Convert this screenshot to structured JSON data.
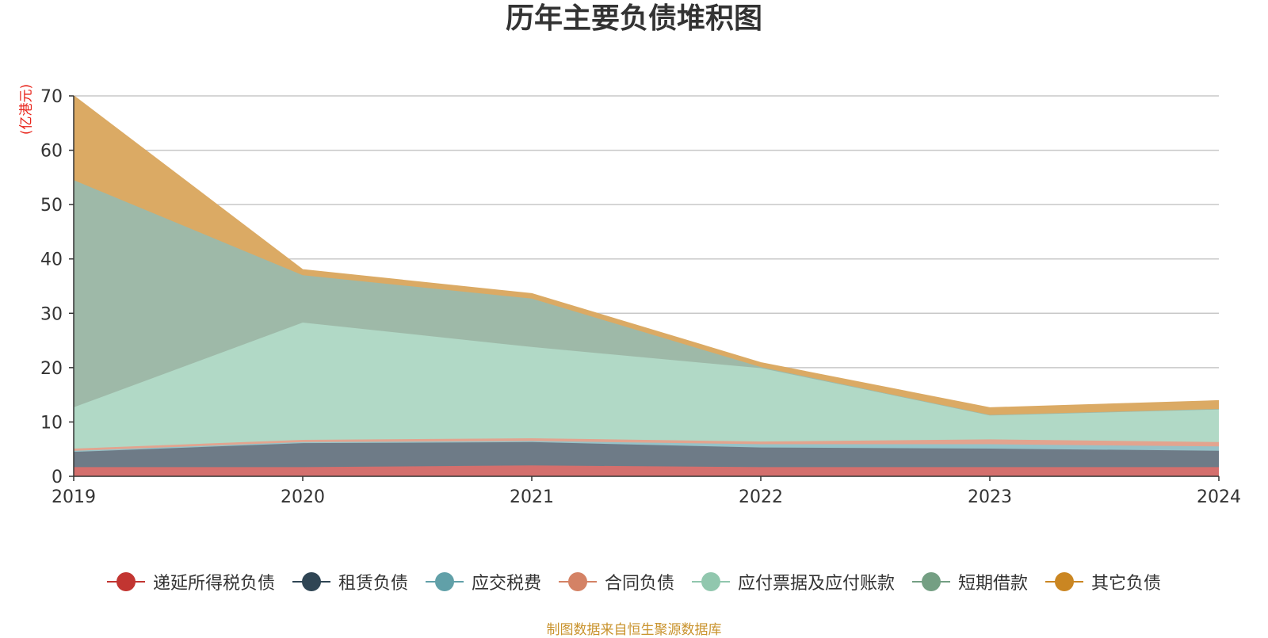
{
  "chart_data": {
    "type": "area",
    "title": "历年主要负债堆积图",
    "unit_label": "(亿港元)",
    "footnote": "制图数据来自恒生聚源数据库",
    "x": [
      "2019",
      "2020",
      "2021",
      "2022",
      "2023",
      "2024"
    ],
    "ylim": [
      0,
      70
    ],
    "yticks": [
      0,
      10,
      20,
      30,
      40,
      50,
      60,
      70
    ],
    "grid": true,
    "stacked": true,
    "legend_position": "bottom",
    "series": [
      {
        "name": "递延所得税负债",
        "color": "#c23531",
        "fill": "#d46f6d",
        "values": [
          1.7,
          1.7,
          2.0,
          1.7,
          1.7,
          1.7
        ]
      },
      {
        "name": "租赁负债",
        "color": "#2f4554",
        "fill": "#6e7b87",
        "values": [
          2.8,
          4.4,
          4.3,
          3.6,
          3.4,
          3.0
        ]
      },
      {
        "name": "应交税费",
        "color": "#61a0a8",
        "fill": "#96c2c8",
        "values": [
          0.2,
          0.2,
          0.2,
          0.6,
          0.8,
          0.8
        ]
      },
      {
        "name": "合同负债",
        "color": "#d48265",
        "fill": "#e2a48f",
        "values": [
          0.4,
          0.4,
          0.5,
          0.5,
          0.9,
          0.8
        ]
      },
      {
        "name": "应付票据及应付账款",
        "color": "#91c7ae",
        "fill": "#b1d9c6",
        "values": [
          7.6,
          21.6,
          16.8,
          13.5,
          4.5,
          6.1
        ]
      },
      {
        "name": "短期借款",
        "color": "#749f83",
        "fill": "#9eb9a8",
        "values": [
          41.8,
          8.7,
          8.9,
          0.2,
          0,
          0
        ]
      },
      {
        "name": "其它负债",
        "color": "#ca8622",
        "fill": "#dbaa64",
        "values": [
          15.5,
          1.0,
          0.9,
          0.8,
          1.3,
          1.5
        ]
      }
    ]
  }
}
